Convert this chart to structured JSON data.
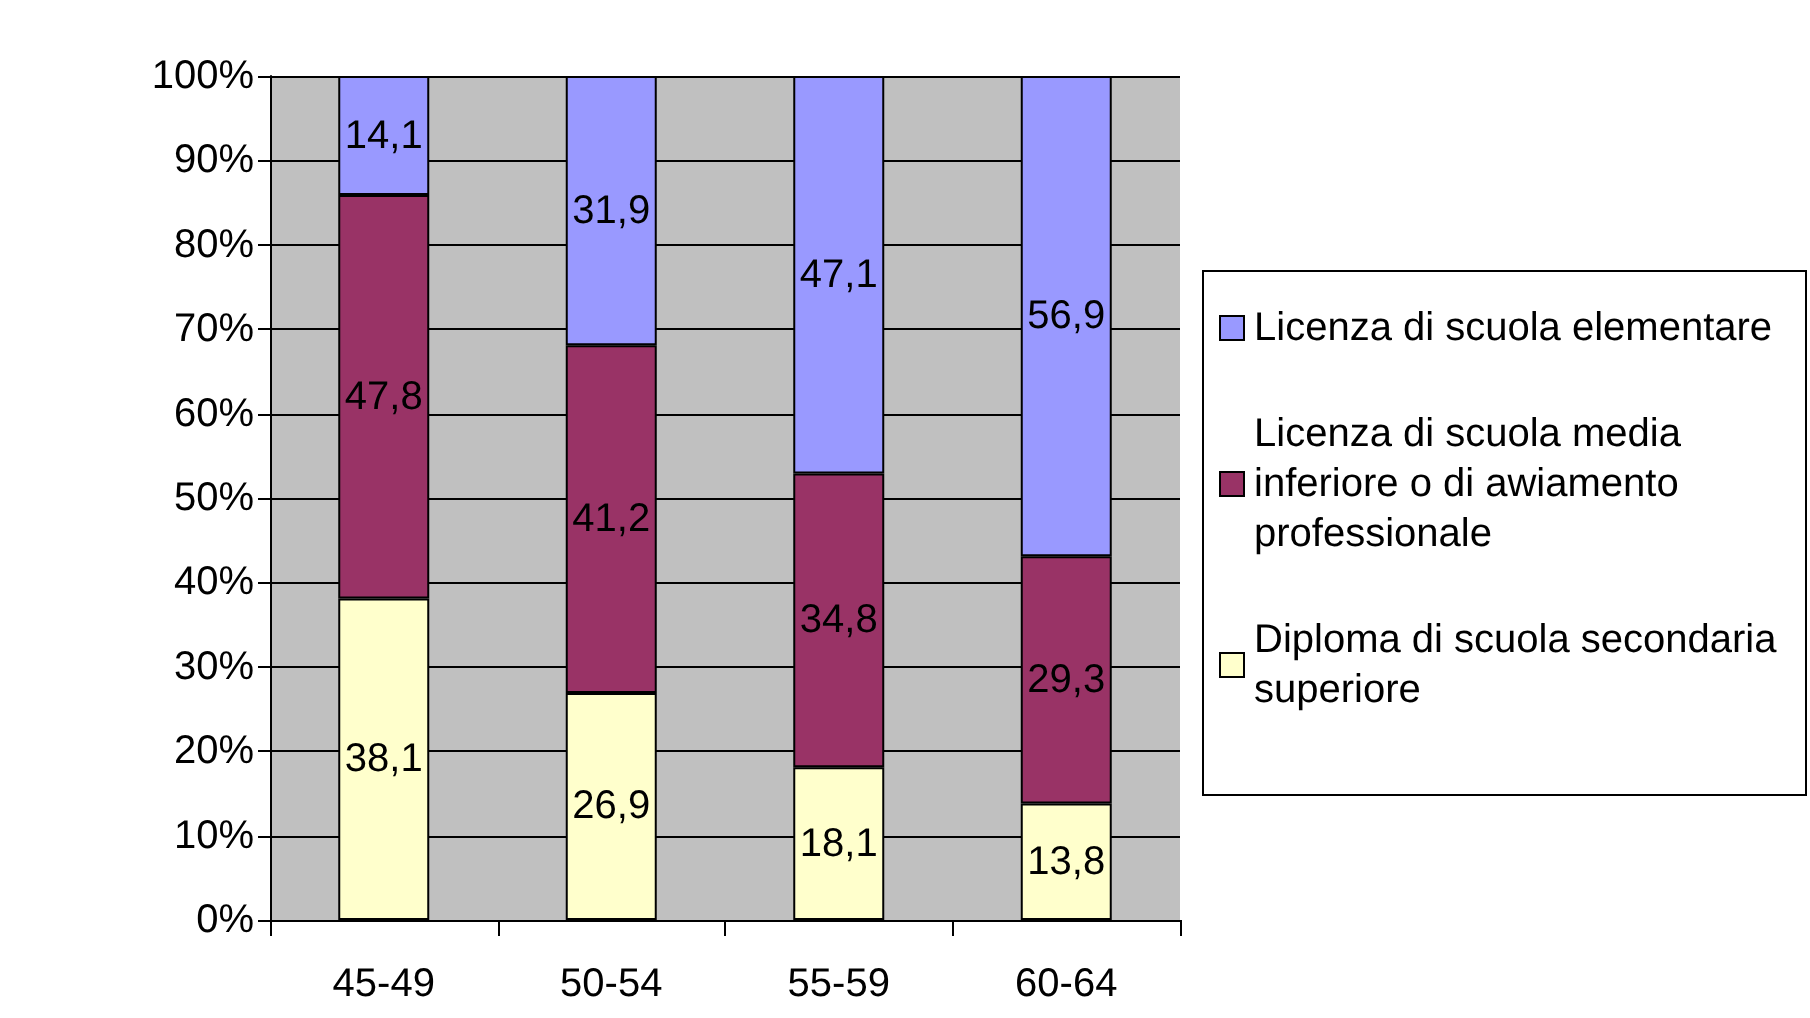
{
  "chart_data": {
    "type": "bar",
    "stacked": true,
    "categories": [
      "45-49",
      "50-54",
      "55-59",
      "60-64"
    ],
    "series": [
      {
        "name": "Diploma di scuola secondaria superiore",
        "color": "#ffffcc",
        "values": [
          38.1,
          26.9,
          18.1,
          13.8
        ],
        "value_labels": [
          "38,1",
          "26,9",
          "18,1",
          "13,8"
        ]
      },
      {
        "name": "Licenza di scuola media inferiore o di awiamento professionale",
        "color": "#993366",
        "values": [
          47.8,
          41.2,
          34.8,
          29.3
        ],
        "value_labels": [
          "47,8",
          "41,2",
          "34,8",
          "29,3"
        ]
      },
      {
        "name": "Licenza di scuola elementare",
        "color": "#9999ff",
        "values": [
          14.1,
          31.9,
          47.1,
          56.9
        ],
        "value_labels": [
          "14,1",
          "31,9",
          "47,1",
          "56,9"
        ]
      }
    ],
    "ylim": [
      0,
      100
    ],
    "yticks": [
      {
        "value": 0,
        "label": "0%"
      },
      {
        "value": 10,
        "label": "10%"
      },
      {
        "value": 20,
        "label": "20%"
      },
      {
        "value": 30,
        "label": "30%"
      },
      {
        "value": 40,
        "label": "40%"
      },
      {
        "value": 50,
        "label": "50%"
      },
      {
        "value": 60,
        "label": "60%"
      },
      {
        "value": 70,
        "label": "70%"
      },
      {
        "value": 80,
        "label": "80%"
      },
      {
        "value": 90,
        "label": "90%"
      },
      {
        "value": 100,
        "label": "100%"
      }
    ],
    "grid": "y",
    "legend": "right"
  }
}
